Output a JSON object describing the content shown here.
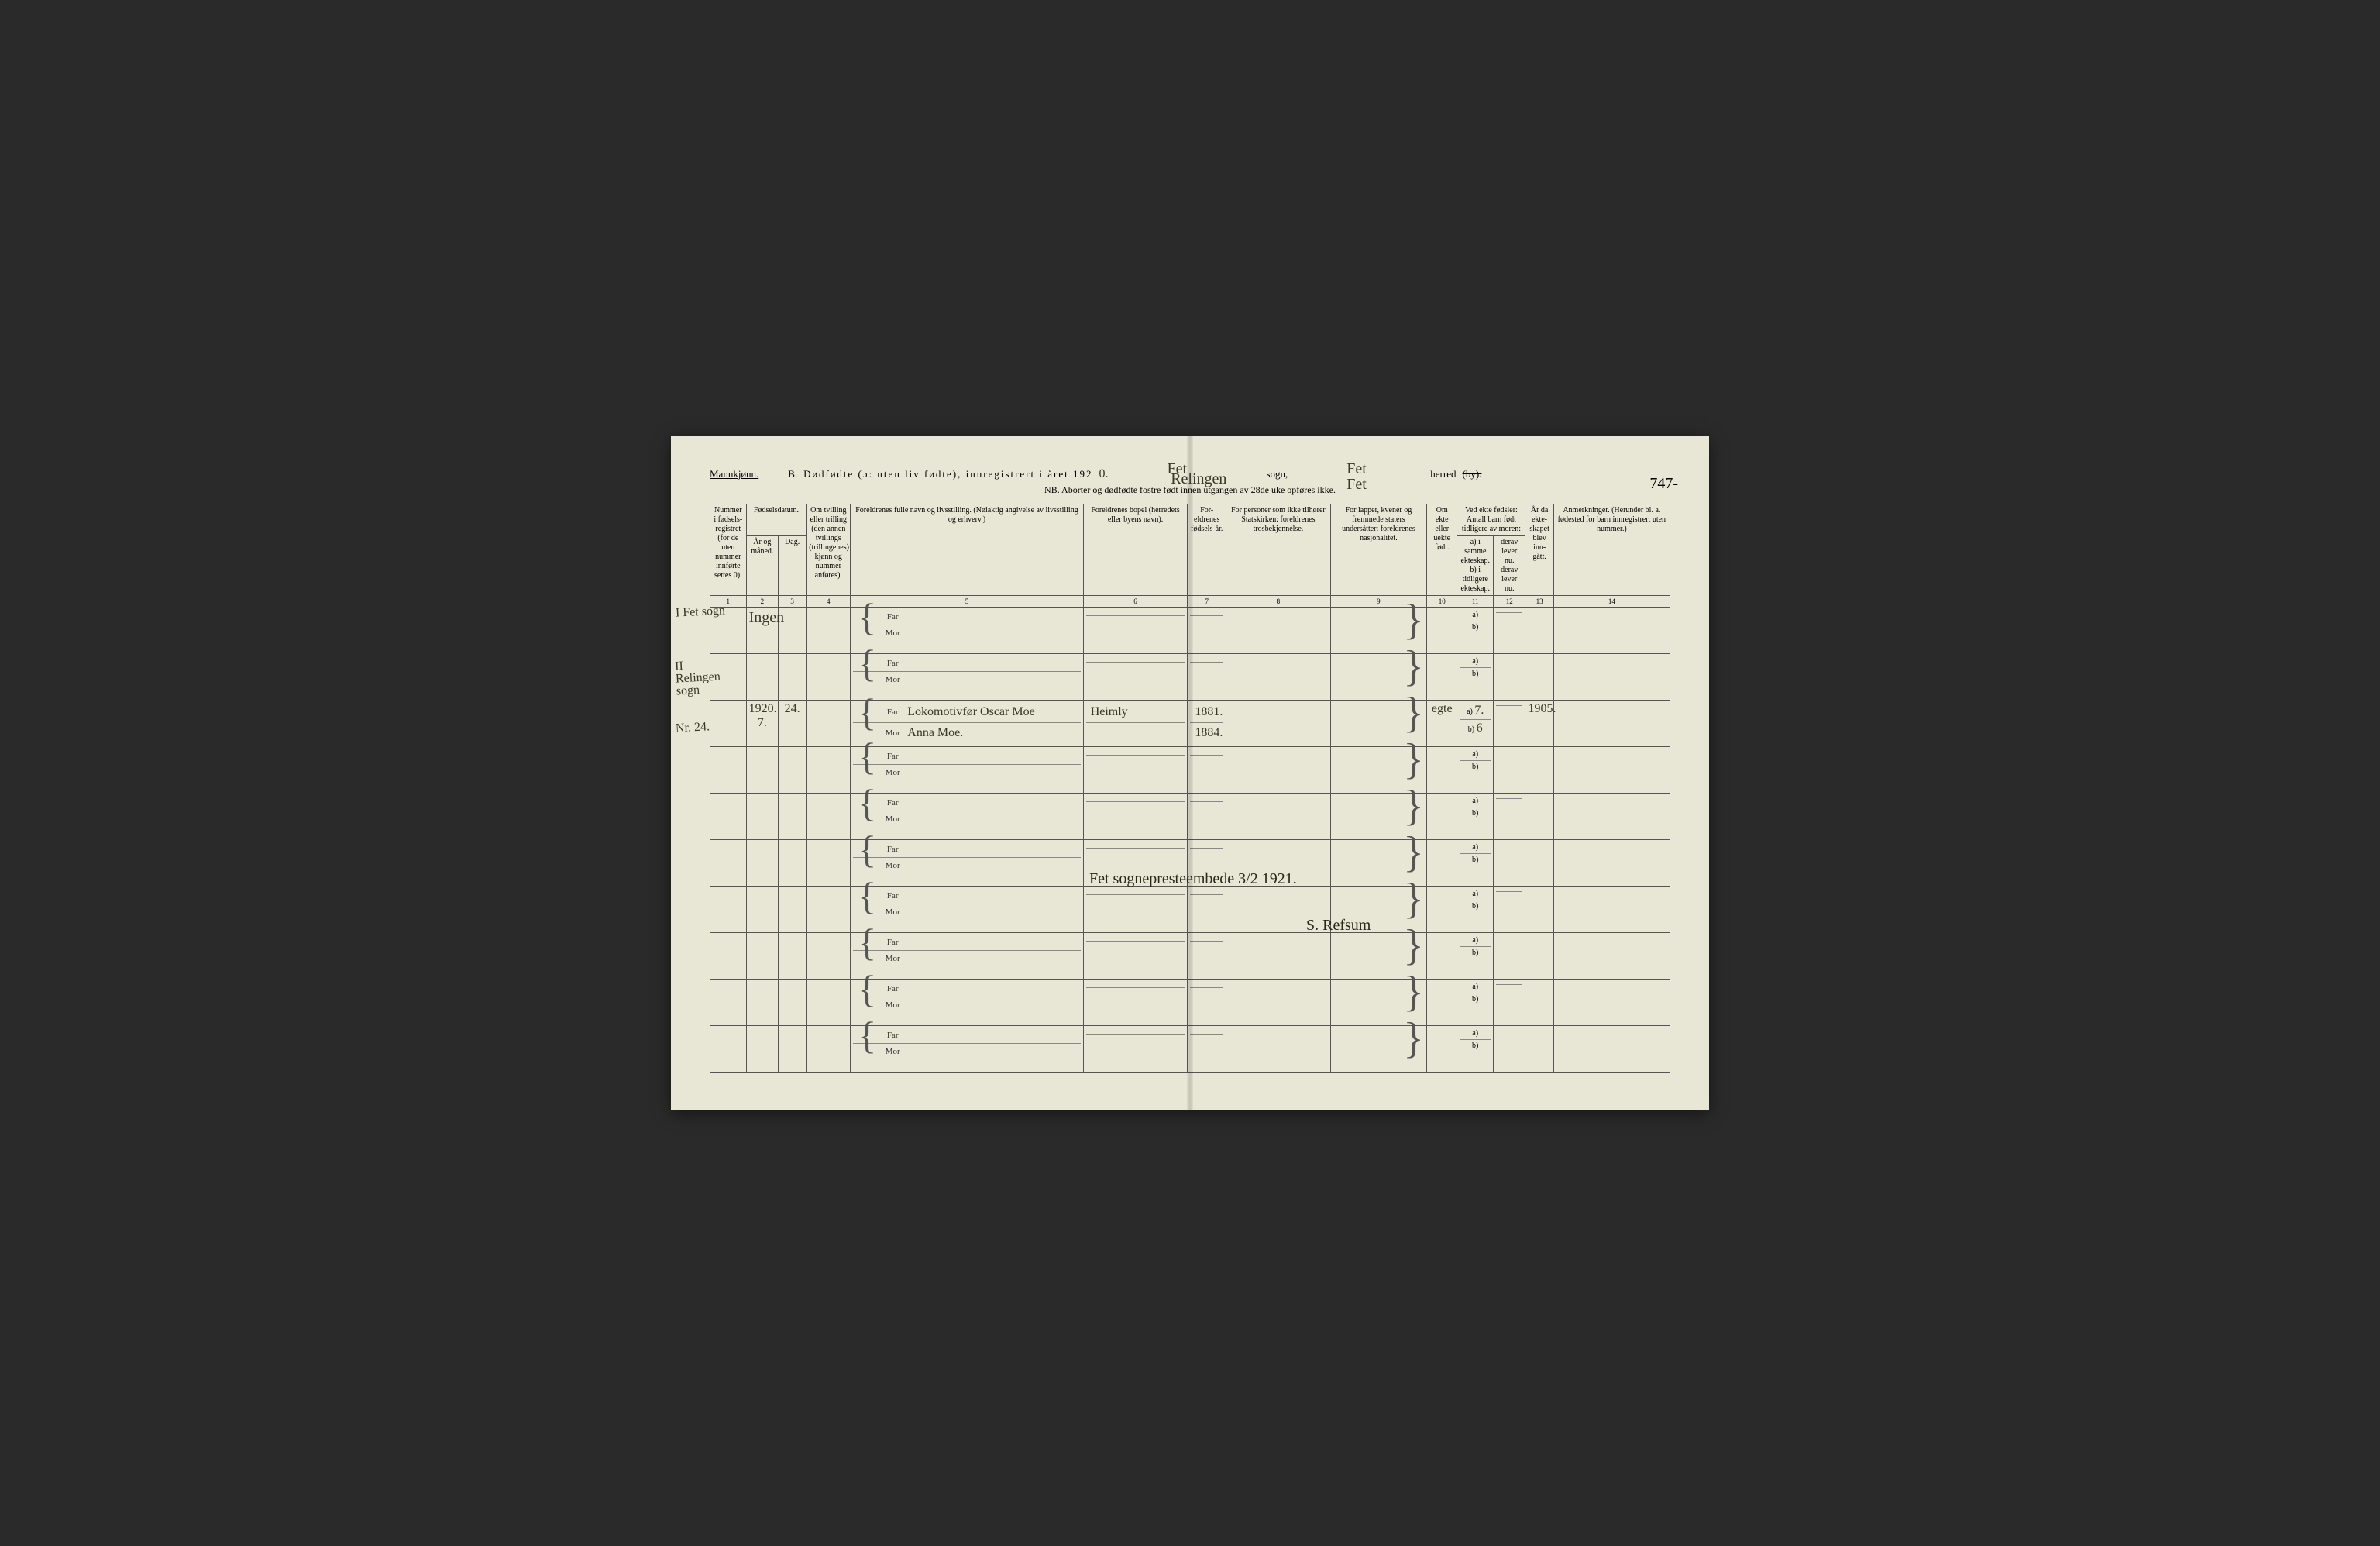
{
  "document": {
    "gender_label": "Mannkjønn.",
    "section_letter": "B.",
    "title_main": "Dødfødte (ɔ: uten liv fødte), innregistrert i året 192",
    "year_digit": "0.",
    "sogn_label": "sogn,",
    "herred_label": "herred",
    "herred_strike": "(by).",
    "nb_line": "NB.  Aborter og dødfødte fostre født innen utgangen av 28de uke opføres ikke.",
    "page_number": "747-",
    "cursive_sogn1": "Fet",
    "cursive_sogn2": "Relingen",
    "cursive_herred1": "Fet",
    "cursive_herred2": "Fet",
    "background_color": "#e8e6d4",
    "ink_color": "#3a3628",
    "rule_color": "#555555"
  },
  "columns": {
    "c1": "Nummer i fødsels-registret (for de uten nummer innførte settes 0).",
    "c2_group": "Fødselsdatum.",
    "c2a": "År og måned.",
    "c2b": "Dag.",
    "c4": "Om tvilling eller trilling (den annen tvillings (trillingenes) kjønn og nummer anføres).",
    "c5": "Foreldrenes fulle navn og livsstilling.\n(Nøiaktig angivelse av livsstilling og erhverv.)",
    "c6": "Foreldrenes bopel\n(herredets eller byens navn).",
    "c7": "For-eldrenes fødsels-år.",
    "c8": "For personer som ikke tilhører Statskirken:\nforeldrenes trosbekjennelse.",
    "c9": "For lapper, kvener og fremmede staters undersåtter:\nforeldrenes nasjonalitet.",
    "c10": "Om ekte eller uekte født.",
    "c11_group": "Ved ekte fødsler:\nAntall barn født tidligere av moren:",
    "c11a": "a) i samme ekteskap.",
    "c11b": "b) i tidligere ekteskap.",
    "c12a": "derav lever nu.",
    "c12b": "derav lever nu.",
    "c13": "År da ekte-skapet blev inn-gått.",
    "c14": "Anmerkninger.\n(Herunder bl. a. fødested for barn innregistrert uten nummer.)",
    "nums": [
      "1",
      "2",
      "3",
      "4",
      "5",
      "6",
      "7",
      "8",
      "9",
      "10",
      "11",
      "12",
      "13",
      "14"
    ]
  },
  "labels": {
    "far": "Far",
    "mor": "Mor",
    "a": "a)",
    "b": "b)"
  },
  "side_annotations": {
    "a1": "I Fet sogn",
    "a2": "II Relingen sogn",
    "a3": "Nr. 24."
  },
  "rows": [
    {
      "col2a": "",
      "col2b": "",
      "ingen": "Ingen",
      "far": "",
      "mor": "",
      "bopel_far": "",
      "bopel_mor": "",
      "year_far": "",
      "year_mor": "",
      "ekte": "",
      "c11a": "",
      "c11b": "",
      "c13": "",
      "c14": ""
    },
    {
      "col2a": "",
      "col2b": "",
      "far": "",
      "mor": "",
      "bopel_far": "",
      "bopel_mor": "",
      "year_far": "",
      "year_mor": "",
      "ekte": "",
      "c11a": "",
      "c11b": "",
      "c13": "",
      "c14": ""
    },
    {
      "col2a": "1920.  7.",
      "col2b": "24.",
      "far": "Lokomotivfør Oscar Moe",
      "mor": "Anna Moe.",
      "bopel_far": "Heimly",
      "bopel_mor": "",
      "year_far": "1881.",
      "year_mor": "1884.",
      "ekte": "egte",
      "c11a": "7.",
      "c11b": "6",
      "c13": "1905.",
      "c14": ""
    },
    {
      "far": "",
      "mor": ""
    },
    {
      "far": "",
      "mor": ""
    },
    {
      "far": "",
      "mor": ""
    },
    {
      "far": "",
      "mor": ""
    },
    {
      "far": "",
      "mor": ""
    },
    {
      "far": "",
      "mor": ""
    },
    {
      "far": "",
      "mor": ""
    }
  ],
  "signatures": {
    "line1": "Fet sognepresteembede   3/2  1921.",
    "line2": "S. Refsum"
  }
}
